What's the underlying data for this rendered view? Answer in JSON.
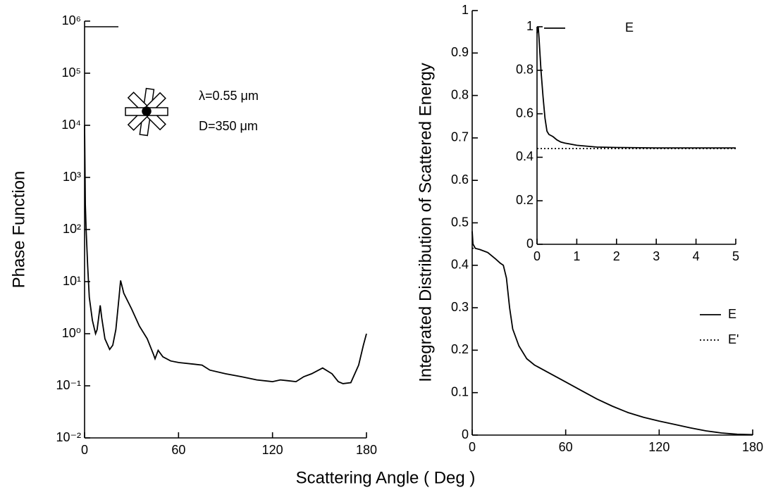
{
  "xlabel": "Scattering Angle ( Deg )",
  "chart_data": [
    {
      "type": "line",
      "ylabel": "Phase Function",
      "log_y": true,
      "annotations": [
        "λ=0.55 μm",
        "D=350 μm"
      ],
      "xlim": [
        0,
        180
      ],
      "xticks": [
        0,
        60,
        120,
        180
      ],
      "ylim": [
        0.01,
        1000000
      ],
      "yticks": [
        {
          "value": 0.01,
          "label": "10⁻²"
        },
        {
          "value": 0.1,
          "label": "10⁻¹"
        },
        {
          "value": 1,
          "label": "10⁰"
        },
        {
          "value": 10,
          "label": "10¹"
        },
        {
          "value": 100,
          "label": "10²"
        },
        {
          "value": 1000,
          "label": "10³"
        },
        {
          "value": 10000,
          "label": "10⁴"
        },
        {
          "value": 100000,
          "label": "10⁵"
        },
        {
          "value": 1000000,
          "label": "10⁶"
        }
      ],
      "series": [
        {
          "color": "#000000",
          "x": [
            0,
            0.5,
            1,
            2,
            3,
            5,
            7,
            8,
            10,
            11,
            13,
            16,
            18,
            20,
            22,
            23,
            25,
            30,
            35,
            40,
            44,
            45,
            47,
            50,
            55,
            60,
            70,
            75,
            80,
            90,
            100,
            110,
            120,
            125,
            130,
            135,
            140,
            145,
            152,
            158,
            162,
            165,
            170,
            175,
            178,
            180
          ],
          "values": [
            10000,
            300,
            100,
            20,
            5,
            1.8,
            1.0,
            1.2,
            3.5,
            2.0,
            0.8,
            0.5,
            0.6,
            1.2,
            5,
            10.5,
            6,
            3,
            1.4,
            0.8,
            0.4,
            0.33,
            0.48,
            0.36,
            0.3,
            0.28,
            0.26,
            0.25,
            0.2,
            0.17,
            0.15,
            0.13,
            0.12,
            0.13,
            0.125,
            0.12,
            0.15,
            0.17,
            0.22,
            0.17,
            0.12,
            0.11,
            0.115,
            0.25,
            0.6,
            1.0
          ]
        }
      ]
    },
    {
      "type": "line",
      "ylabel": "Integrated Distribution of Scattered Energy",
      "xlim": [
        0,
        180
      ],
      "xticks": [
        0,
        60,
        120,
        180
      ],
      "ylim": [
        0,
        1
      ],
      "yticks": [
        0,
        0.1,
        0.2,
        0.3,
        0.4,
        0.5,
        0.6,
        0.7,
        0.8,
        0.9,
        1
      ],
      "legend": "right",
      "series": [
        {
          "name": "E",
          "color": "#000000",
          "dash": "solid",
          "x": [
            0,
            0.5,
            2,
            5,
            10,
            15,
            18,
            20,
            22,
            24,
            26,
            30,
            35,
            40,
            50,
            60,
            70,
            80,
            90,
            100,
            110,
            120,
            130,
            140,
            150,
            160,
            170,
            180
          ],
          "values": [
            0.48,
            0.45,
            0.44,
            0.437,
            0.43,
            0.415,
            0.405,
            0.4,
            0.37,
            0.3,
            0.25,
            0.21,
            0.18,
            0.165,
            0.145,
            0.125,
            0.105,
            0.085,
            0.068,
            0.053,
            0.042,
            0.033,
            0.025,
            0.017,
            0.01,
            0.005,
            0.002,
            0.001
          ]
        },
        {
          "name": "E'",
          "color": "#000000",
          "dash": "dotted",
          "x": [
            0,
            2
          ],
          "values": [
            0.44,
            0.44
          ]
        }
      ]
    },
    {
      "type": "line",
      "inset": true,
      "xlim": [
        0,
        5
      ],
      "xticks": [
        0,
        1,
        2,
        3,
        4,
        5
      ],
      "ylim": [
        0,
        1
      ],
      "yticks": [
        0,
        0.2,
        0.4,
        0.6,
        0.8,
        1
      ],
      "legend": "top",
      "series": [
        {
          "name": "E",
          "color": "#000000",
          "dash": "solid",
          "x": [
            0,
            0.03,
            0.05,
            0.1,
            0.15,
            0.2,
            0.25,
            0.3,
            0.4,
            0.5,
            0.6,
            0.7,
            0.8,
            1,
            1.5,
            2,
            3,
            5
          ],
          "values": [
            0.97,
            1.0,
            0.95,
            0.8,
            0.68,
            0.58,
            0.52,
            0.505,
            0.495,
            0.48,
            0.47,
            0.465,
            0.462,
            0.455,
            0.447,
            0.445,
            0.443,
            0.443
          ]
        },
        {
          "name": "E'",
          "color": "#000000",
          "dash": "dotted",
          "show_in_legend": false,
          "x": [
            0,
            5
          ],
          "values": [
            0.44,
            0.44
          ]
        }
      ]
    }
  ]
}
